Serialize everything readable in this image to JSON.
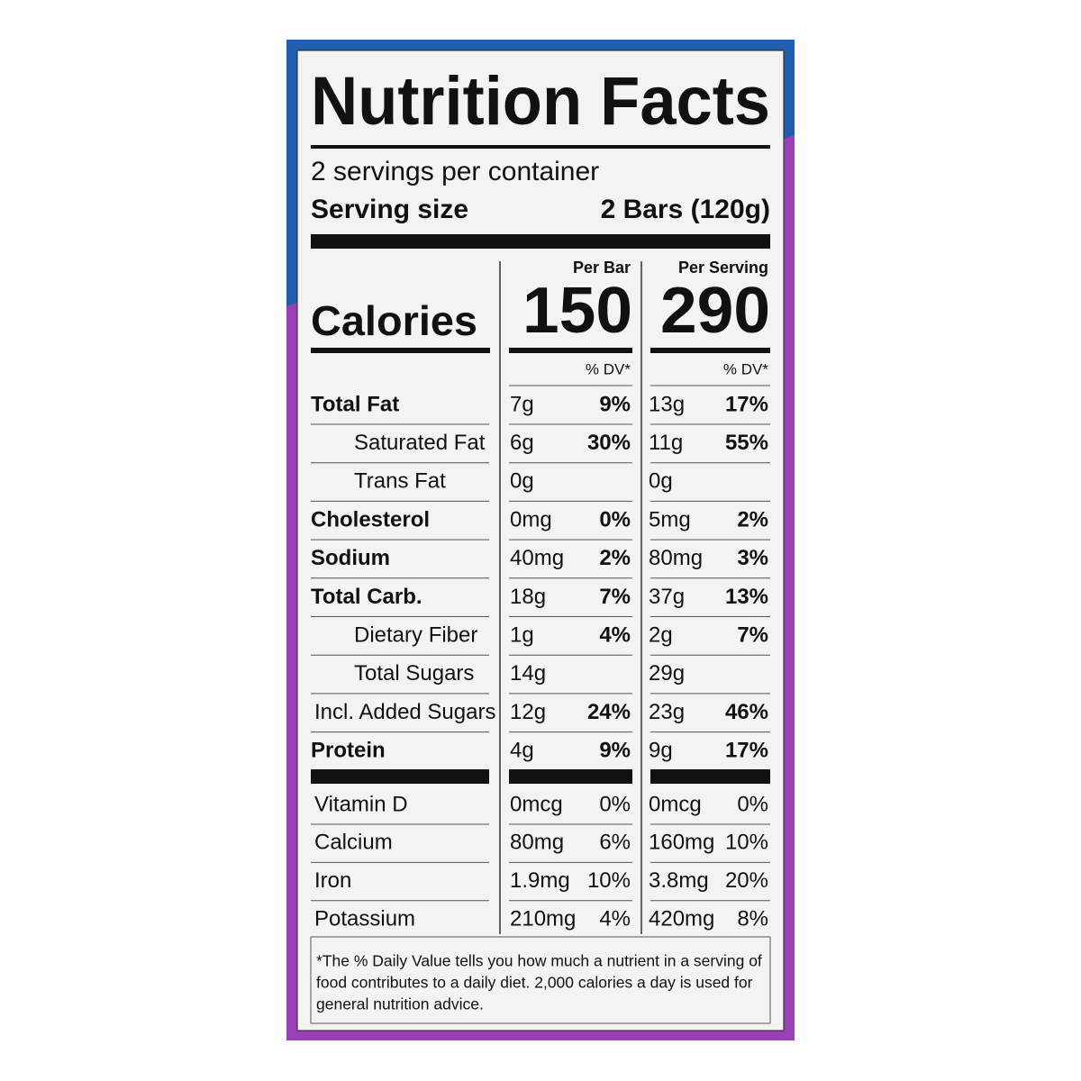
{
  "title": "Nutrition Facts",
  "servings_per_container": "2 servings per container",
  "serving_size": {
    "label": "Serving size",
    "value": "2 Bars (120g)"
  },
  "calories": {
    "label": "Calories",
    "columns": [
      {
        "header": "Per Bar",
        "value": "150",
        "dv_header": "% DV*"
      },
      {
        "header": "Per Serving",
        "value": "290",
        "dv_header": "% DV*"
      }
    ]
  },
  "nutrients": [
    {
      "name": "Total Fat",
      "bold": true,
      "indent": false,
      "per_bar": {
        "amount": "7g",
        "dv": "9%"
      },
      "per_serving": {
        "amount": "13g",
        "dv": "17%"
      }
    },
    {
      "name": "Saturated Fat",
      "bold": false,
      "indent": true,
      "per_bar": {
        "amount": "6g",
        "dv": "30%"
      },
      "per_serving": {
        "amount": "11g",
        "dv": "55%"
      }
    },
    {
      "name": "Trans Fat",
      "bold": false,
      "indent": true,
      "per_bar": {
        "amount": "0g"
      },
      "per_serving": {
        "amount": "0g"
      }
    },
    {
      "name": "Cholesterol",
      "bold": true,
      "indent": false,
      "per_bar": {
        "amount": "0mg",
        "dv": "0%"
      },
      "per_serving": {
        "amount": "5mg",
        "dv": "2%"
      }
    },
    {
      "name": "Sodium",
      "bold": true,
      "indent": false,
      "per_bar": {
        "amount": "40mg",
        "dv": "2%"
      },
      "per_serving": {
        "amount": "80mg",
        "dv": "3%"
      }
    },
    {
      "name": "Total Carb.",
      "bold": true,
      "indent": false,
      "per_bar": {
        "amount": "18g",
        "dv": "7%"
      },
      "per_serving": {
        "amount": "37g",
        "dv": "13%"
      }
    },
    {
      "name": "Dietary Fiber",
      "bold": false,
      "indent": true,
      "per_bar": {
        "amount": "1g",
        "dv": "4%"
      },
      "per_serving": {
        "amount": "2g",
        "dv": "7%"
      }
    },
    {
      "name": "Total Sugars",
      "bold": false,
      "indent": true,
      "per_bar": {
        "amount": "14g"
      },
      "per_serving": {
        "amount": "29g"
      }
    },
    {
      "name": "Incl. Added Sugars",
      "bold": false,
      "indent": false,
      "per_bar": {
        "amount": "12g",
        "dv": "24%"
      },
      "per_serving": {
        "amount": "23g",
        "dv": "46%"
      }
    },
    {
      "name": "Protein",
      "bold": true,
      "indent": false,
      "per_bar": {
        "amount": "4g",
        "dv": "9%"
      },
      "per_serving": {
        "amount": "9g",
        "dv": "17%"
      }
    }
  ],
  "vitamins": [
    {
      "name": "Vitamin D",
      "per_bar": {
        "amount": "0mcg",
        "dv": "0%"
      },
      "per_serving": {
        "amount": "0mcg",
        "dv": "0%"
      }
    },
    {
      "name": "Calcium",
      "per_bar": {
        "amount": "80mg",
        "dv": "6%"
      },
      "per_serving": {
        "amount": "160mg",
        "dv": "10%"
      }
    },
    {
      "name": "Iron",
      "per_bar": {
        "amount": "1.9mg",
        "dv": "10%"
      },
      "per_serving": {
        "amount": "3.8mg",
        "dv": "20%"
      }
    },
    {
      "name": "Potassium",
      "per_bar": {
        "amount": "210mg",
        "dv": "4%"
      },
      "per_serving": {
        "amount": "420mg",
        "dv": "8%"
      }
    }
  ],
  "footnote": [
    "*The % Daily Value tells you how much a nutrient in a serving of",
    "food contributes to a daily diet. 2,000 calories a day is used for",
    "general nutrition advice."
  ]
}
